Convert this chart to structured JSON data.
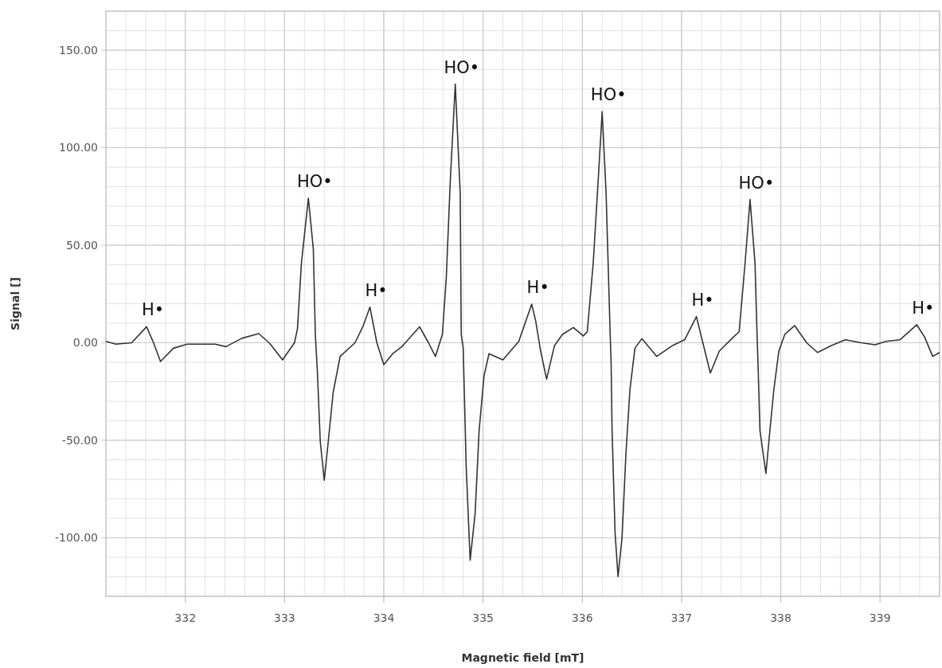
{
  "chart_data": {
    "type": "line",
    "xlabel": "Magnetic field [mT]",
    "ylabel": "Signal []",
    "xlim": [
      331.2,
      339.6
    ],
    "ylim": [
      -130,
      170
    ],
    "xticks": [
      332,
      333,
      334,
      335,
      336,
      337,
      338,
      339
    ],
    "yticks": [
      {
        "value": -100,
        "label": "-100.00"
      },
      {
        "value": -50,
        "label": "-50.00"
      },
      {
        "value": 0,
        "label": "0.00"
      },
      {
        "value": 50,
        "label": "50.00"
      },
      {
        "value": 100,
        "label": "100.00"
      },
      {
        "value": 150,
        "label": "150.00"
      }
    ],
    "grid": true,
    "marker": "none",
    "line_style": "solid",
    "series": [
      {
        "color": "#333333",
        "x": [
          331.2,
          331.3,
          331.46,
          331.61,
          331.68,
          331.75,
          331.88,
          332.02,
          332.3,
          332.41,
          332.57,
          332.74,
          332.85,
          332.98,
          333.1,
          333.13,
          333.17,
          333.24,
          333.29,
          333.31,
          333.32,
          333.33,
          333.36,
          333.4,
          333.44,
          333.49,
          333.56,
          333.71,
          333.79,
          333.86,
          333.93,
          334.0,
          334.09,
          334.18,
          334.36,
          334.45,
          334.52,
          334.59,
          334.63,
          334.67,
          334.72,
          334.77,
          334.78,
          334.8,
          334.83,
          334.87,
          334.92,
          334.96,
          335.01,
          335.06,
          335.2,
          335.36,
          335.49,
          335.53,
          335.58,
          335.64,
          335.72,
          335.8,
          335.91,
          336.01,
          336.05,
          336.11,
          336.16,
          336.2,
          336.24,
          336.28,
          336.29,
          336.3,
          336.33,
          336.36,
          336.4,
          336.44,
          336.48,
          336.53,
          336.6,
          336.75,
          336.91,
          337.03,
          337.1,
          337.15,
          337.18,
          337.29,
          337.38,
          337.52,
          337.58,
          337.64,
          337.69,
          337.74,
          337.76,
          337.77,
          337.79,
          337.85,
          337.89,
          337.93,
          337.98,
          338.04,
          338.14,
          338.26,
          338.37,
          338.51,
          338.65,
          338.81,
          338.95,
          339.06,
          339.2,
          339.37,
          339.45,
          339.53,
          339.6
        ],
        "values": [
          0.7,
          -0.7,
          0,
          8.2,
          0,
          -9.6,
          -2.8,
          -0.7,
          -0.7,
          -2,
          2.3,
          4.7,
          -0.3,
          -8.8,
          0,
          7.2,
          40.9,
          74.1,
          48,
          4.3,
          -5,
          -14,
          -50.8,
          -70.5,
          -50.8,
          -25.4,
          -7,
          0,
          8.4,
          18.3,
          0,
          -11.2,
          -5.6,
          -2.1,
          8.2,
          0,
          -7,
          4.3,
          33.9,
          83.3,
          132.6,
          76.2,
          4.3,
          -2.8,
          -63.5,
          -111.5,
          -87.5,
          -45.2,
          -16.9,
          -5.6,
          -8.8,
          0.7,
          19.8,
          11.3,
          -4.2,
          -18.6,
          -1.4,
          4.3,
          7.8,
          3.5,
          5.6,
          40.9,
          83.3,
          118.5,
          76.2,
          5.6,
          -9.9,
          -45.1,
          -97.3,
          -119.9,
          -100,
          -56.4,
          -24,
          -2.8,
          2.1,
          -7,
          -1.4,
          1.5,
          8.4,
          13.4,
          7.1,
          -15.5,
          -4.3,
          2.8,
          5.6,
          40.9,
          73.4,
          40.9,
          5.6,
          -9.9,
          -45.1,
          -67,
          -45.1,
          -24,
          -4.3,
          4.3,
          8.8,
          0,
          -5,
          -1.4,
          1.5,
          0,
          -1,
          0.7,
          1.5,
          9.2,
          2.8,
          -7,
          -5
        ]
      }
    ],
    "annotations": [
      {
        "text": "H•",
        "x": 331.61,
        "y": 8.2
      },
      {
        "text": "HO•",
        "x": 333.24,
        "y": 74.1
      },
      {
        "text": "H•",
        "x": 333.86,
        "y": 18.3
      },
      {
        "text": "HO•",
        "x": 334.72,
        "y": 132.6
      },
      {
        "text": "H•",
        "x": 335.49,
        "y": 19.8
      },
      {
        "text": "HO•",
        "x": 336.2,
        "y": 118.5
      },
      {
        "text": "H•",
        "x": 337.15,
        "y": 13.4
      },
      {
        "text": "HO•",
        "x": 337.69,
        "y": 73.4
      },
      {
        "text": "H•",
        "x": 339.37,
        "y": 9.2
      }
    ]
  }
}
